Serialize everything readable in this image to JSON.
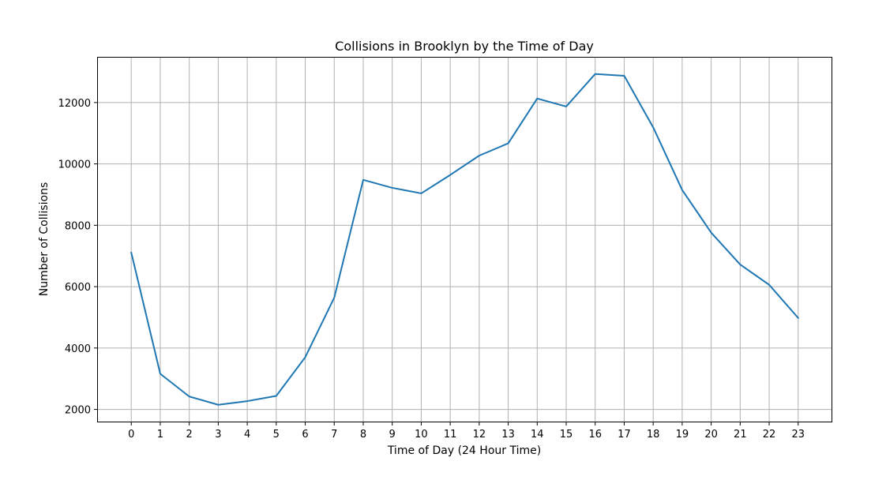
{
  "colors": {
    "line": "#1f77b4",
    "grid": "#b0b0b0",
    "axis": "#000000"
  },
  "chart_data": {
    "type": "line",
    "title": "Collisions in Brooklyn by the Time of Day",
    "xlabel": "Time of Day (24 Hour Time)",
    "ylabel": "Number of Collisions",
    "x": [
      0,
      1,
      2,
      3,
      4,
      5,
      6,
      7,
      8,
      9,
      10,
      11,
      12,
      13,
      14,
      15,
      16,
      17,
      18,
      19,
      20,
      21,
      22,
      23
    ],
    "xticks": [
      "0",
      "1",
      "2",
      "3",
      "4",
      "5",
      "6",
      "7",
      "8",
      "9",
      "10",
      "11",
      "12",
      "13",
      "14",
      "15",
      "16",
      "17",
      "18",
      "19",
      "20",
      "21",
      "22",
      "23"
    ],
    "yticks": [
      2000,
      4000,
      6000,
      8000,
      10000,
      12000
    ],
    "xlim": [
      -1.15,
      24.15
    ],
    "ylim": [
      1603,
      13463
    ],
    "grid": true,
    "series": [
      {
        "values": [
          7110,
          3160,
          2420,
          2150,
          2270,
          2440,
          3700,
          5640,
          9480,
          9220,
          9040,
          9640,
          10270,
          10670,
          12130,
          11870,
          12930,
          12870,
          11190,
          9150,
          7760,
          6720,
          6060,
          4980
        ]
      }
    ]
  }
}
